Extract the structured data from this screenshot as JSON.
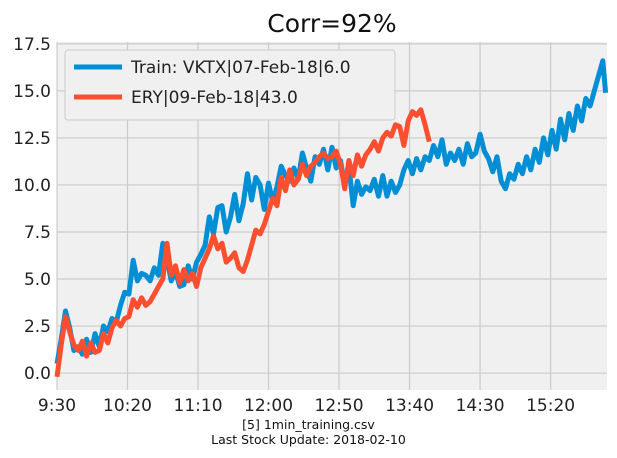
{
  "chart_data": {
    "type": "line",
    "title": "Corr=92%",
    "xlabel": "",
    "ylabel": "",
    "x_ticks": [
      "9:30",
      "10:20",
      "11:10",
      "12:00",
      "12:50",
      "13:40",
      "14:30",
      "15:20"
    ],
    "x_tick_minutes": [
      0,
      50,
      100,
      150,
      200,
      250,
      300,
      350
    ],
    "xlim": [
      0,
      390
    ],
    "y_ticks": [
      "0.0",
      "2.5",
      "5.0",
      "7.5",
      "10.0",
      "12.5",
      "15.0",
      "17.5"
    ],
    "ylim": [
      -0.9,
      17.6
    ],
    "grid": true,
    "legend_position": "top-left",
    "series": [
      {
        "name": "Train: VKTX|07-Feb-18|6.0",
        "color": "#008fd5",
        "x": [
          0,
          3,
          6,
          9,
          12,
          15,
          18,
          21,
          24,
          27,
          30,
          33,
          36,
          39,
          42,
          45,
          48,
          51,
          54,
          57,
          60,
          63,
          66,
          69,
          72,
          75,
          78,
          81,
          84,
          87,
          90,
          93,
          96,
          99,
          102,
          105,
          108,
          111,
          114,
          117,
          120,
          123,
          126,
          129,
          132,
          135,
          138,
          141,
          144,
          147,
          150,
          153,
          156,
          159,
          162,
          165,
          168,
          171,
          174,
          177,
          180,
          183,
          186,
          189,
          192,
          195,
          198,
          201,
          204,
          207,
          210,
          213,
          216,
          219,
          222,
          225,
          228,
          231,
          234,
          237,
          240,
          243,
          246,
          249,
          252,
          255,
          258,
          261,
          264,
          267,
          270,
          273,
          276,
          279,
          282,
          285,
          288,
          291,
          294,
          297,
          300,
          303,
          306,
          309,
          312,
          315,
          318,
          321,
          324,
          327,
          330,
          333,
          336,
          339,
          342,
          345,
          348,
          351,
          354,
          357,
          360,
          363,
          366,
          369,
          372,
          375,
          378,
          381,
          384,
          387,
          389
        ],
        "y": [
          0.5,
          1.8,
          3.3,
          2.4,
          1.2,
          1.4,
          1.0,
          1.8,
          1.1,
          2.1,
          1.4,
          2.5,
          2.2,
          2.9,
          2.7,
          3.6,
          4.3,
          4.2,
          6.0,
          4.9,
          5.3,
          5.2,
          4.9,
          5.6,
          5.2,
          6.9,
          6.1,
          4.9,
          5.4,
          4.6,
          4.7,
          5.7,
          5.0,
          5.9,
          6.3,
          6.8,
          8.3,
          7.4,
          8.8,
          8.9,
          7.5,
          8.3,
          9.5,
          8.1,
          9.0,
          10.6,
          9.2,
          10.4,
          10.0,
          8.7,
          10.1,
          9.1,
          9.9,
          11.0,
          10.5,
          10.2,
          10.9,
          10.3,
          11.7,
          10.9,
          10.2,
          11.5,
          11.1,
          11.9,
          10.8,
          12.0,
          10.9,
          11.3,
          10.0,
          11.0,
          8.9,
          10.2,
          9.5,
          9.9,
          9.7,
          10.3,
          9.4,
          10.5,
          9.4,
          10.2,
          9.6,
          10.0,
          10.8,
          11.3,
          10.6,
          11.4,
          10.8,
          11.5,
          11.3,
          12.1,
          11.5,
          12.4,
          11.1,
          11.7,
          11.3,
          11.9,
          11.1,
          12.2,
          11.5,
          11.7,
          12.7,
          11.8,
          11.4,
          10.7,
          11.5,
          10.2,
          9.8,
          10.6,
          10.3,
          11.1,
          10.6,
          11.5,
          10.8,
          11.9,
          11.2,
          12.5,
          11.6,
          12.9,
          11.9,
          13.5,
          12.4,
          13.8,
          12.9,
          14.2,
          13.4,
          14.6,
          14.2,
          15.0,
          15.8,
          16.6,
          14.9
        ]
      },
      {
        "name": "ERY|09-Feb-18|43.0",
        "color": "#fc4f30",
        "x": [
          0,
          3,
          6,
          9,
          12,
          15,
          18,
          21,
          24,
          27,
          30,
          33,
          36,
          39,
          42,
          45,
          48,
          51,
          54,
          57,
          60,
          63,
          66,
          69,
          72,
          75,
          78,
          81,
          84,
          87,
          90,
          93,
          96,
          99,
          102,
          105,
          108,
          111,
          114,
          117,
          120,
          123,
          126,
          129,
          132,
          135,
          138,
          141,
          144,
          147,
          150,
          153,
          156,
          159,
          162,
          165,
          168,
          171,
          174,
          177,
          180,
          183,
          186,
          189,
          192,
          195,
          198,
          201,
          204,
          207,
          210,
          213,
          216,
          219,
          222,
          225,
          228,
          231,
          234,
          237,
          240,
          243,
          246,
          249,
          252,
          255,
          258,
          261,
          264
        ],
        "y": [
          -0.2,
          1.5,
          3.0,
          2.2,
          1.5,
          1.2,
          1.7,
          0.9,
          1.6,
          1.1,
          1.2,
          2.1,
          1.6,
          2.4,
          2.8,
          2.5,
          2.9,
          3.0,
          3.9,
          3.5,
          4.0,
          3.6,
          3.8,
          4.2,
          4.6,
          5.0,
          6.9,
          5.2,
          5.7,
          4.8,
          5.5,
          4.9,
          5.3,
          4.6,
          5.6,
          6.1,
          6.6,
          7.3,
          6.6,
          6.9,
          5.9,
          6.1,
          6.4,
          5.6,
          5.4,
          6.0,
          6.8,
          7.6,
          7.4,
          7.9,
          8.6,
          9.3,
          8.9,
          10.4,
          9.7,
          10.8,
          10.0,
          10.3,
          11.1,
          10.5,
          11.0,
          11.2,
          11.5,
          11.7,
          11.4,
          11.5,
          11.8,
          11.1,
          9.8,
          11.3,
          10.5,
          11.6,
          11.0,
          11.6,
          11.9,
          12.3,
          11.8,
          12.5,
          12.8,
          12.6,
          13.2,
          13.1,
          12.1,
          13.4,
          13.9,
          13.7,
          14.0,
          13.2,
          12.3
        ]
      }
    ]
  },
  "footer": {
    "line1": "[5] 1min_training.csv",
    "line2": "Last Stock Update: 2018-02-10"
  }
}
